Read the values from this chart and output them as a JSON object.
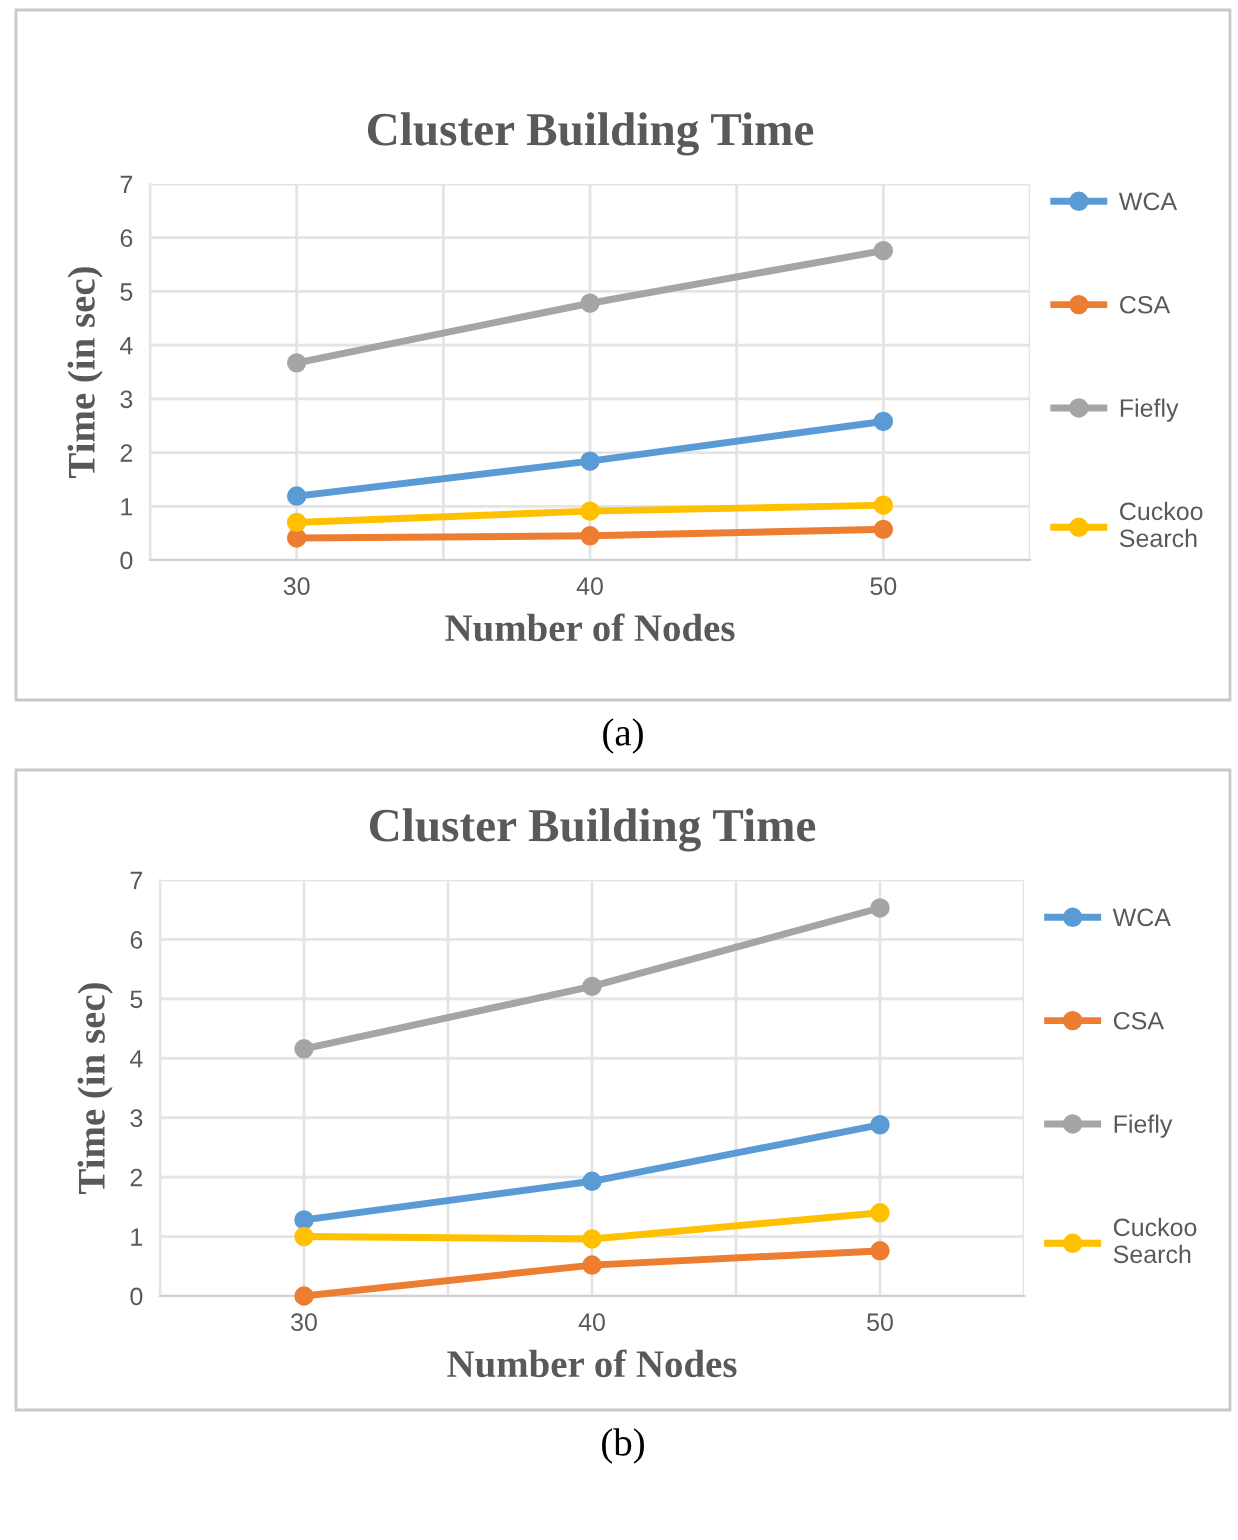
{
  "chart_data": [
    {
      "type": "line",
      "title": "Cluster Building Time",
      "xlabel": "Number of Nodes",
      "ylabel": "Time (in sec)",
      "x": [
        30,
        40,
        50
      ],
      "xlim": [
        25,
        55
      ],
      "xticks": [
        {
          "value": 25,
          "label": null
        },
        30,
        {
          "value": 35,
          "label": null
        },
        40,
        {
          "value": 45,
          "label": null
        },
        50,
        {
          "value": 55,
          "label": null
        }
      ],
      "ylim": [
        0,
        7
      ],
      "yticks": [
        0,
        1,
        2,
        3,
        4,
        5,
        6,
        7
      ],
      "grid": true,
      "legend": "right",
      "marker": "circle",
      "line_style": "solid",
      "annotations": [
        "(a)"
      ],
      "series": [
        {
          "name": "WCA",
          "color": "#5b9bd5",
          "values": [
            1.19,
            1.84,
            2.58
          ]
        },
        {
          "name": "CSA",
          "color": "#ed7d31",
          "values": [
            0.41,
            0.45,
            0.57
          ]
        },
        {
          "name": "Fiefly",
          "color": "#a5a5a5",
          "values": [
            3.67,
            4.78,
            5.76
          ]
        },
        {
          "name": "Cuckoo Search",
          "color": "#ffc000",
          "values": [
            0.7,
            0.91,
            1.02
          ]
        }
      ]
    },
    {
      "type": "line",
      "title": "Cluster Building Time",
      "xlabel": "Number of Nodes",
      "ylabel": "Time (in sec)",
      "x": [
        30,
        40,
        50
      ],
      "xlim": [
        25,
        55
      ],
      "xticks": [
        {
          "value": 25,
          "label": null
        },
        30,
        {
          "value": 35,
          "label": null
        },
        40,
        {
          "value": 45,
          "label": null
        },
        50,
        {
          "value": 55,
          "label": null
        }
      ],
      "ylim": [
        0,
        7
      ],
      "yticks": [
        0,
        1,
        2,
        3,
        4,
        5,
        6,
        7
      ],
      "grid": true,
      "legend": "right",
      "marker": "circle",
      "line_style": "solid",
      "annotations": [
        "(b)"
      ],
      "series": [
        {
          "name": "WCA",
          "color": "#5b9bd5",
          "values": [
            1.28,
            1.93,
            2.88
          ]
        },
        {
          "name": "CSA",
          "color": "#ed7d31",
          "values": [
            0.0,
            0.52,
            0.76
          ]
        },
        {
          "name": "Fiefly",
          "color": "#a5a5a5",
          "values": [
            4.16,
            5.21,
            6.53
          ]
        },
        {
          "name": "Cuckoo Search",
          "color": "#ffc000",
          "values": [
            1.0,
            0.96,
            1.4
          ]
        }
      ]
    }
  ]
}
